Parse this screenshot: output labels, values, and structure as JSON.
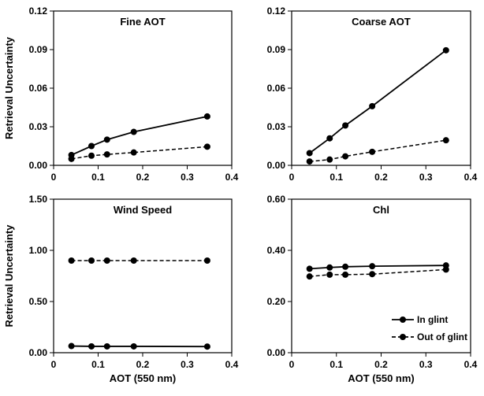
{
  "chart_data": [
    {
      "type": "line",
      "title": "Fine AOT",
      "xlabel": "",
      "ylabel": "Retrieval Uncertainty",
      "xlim": [
        0,
        0.4
      ],
      "ylim": [
        0,
        0.12
      ],
      "xticks": [
        "0",
        "0.1",
        "0.2",
        "0.3",
        "0.4"
      ],
      "yticks": [
        "0.00",
        "0.03",
        "0.06",
        "0.09",
        "0.12"
      ],
      "x": [
        0.04,
        0.085,
        0.12,
        0.18,
        0.345
      ],
      "series": [
        {
          "name": "In glint",
          "style": "solid",
          "values": [
            0.008,
            0.015,
            0.02,
            0.026,
            0.038
          ]
        },
        {
          "name": "Out of glint",
          "style": "dashed",
          "values": [
            0.005,
            0.0075,
            0.0085,
            0.01,
            0.0145
          ]
        }
      ]
    },
    {
      "type": "line",
      "title": "Coarse AOT",
      "xlabel": "",
      "ylabel": "",
      "xlim": [
        0,
        0.4
      ],
      "ylim": [
        0,
        0.12
      ],
      "xticks": [
        "0",
        "0.1",
        "0.2",
        "0.3",
        "0.4"
      ],
      "yticks": [
        "0.00",
        "0.03",
        "0.06",
        "0.09",
        "0.12"
      ],
      "x": [
        0.04,
        0.085,
        0.12,
        0.18,
        0.345
      ],
      "series": [
        {
          "name": "In glint",
          "style": "solid",
          "values": [
            0.0095,
            0.021,
            0.031,
            0.046,
            0.0895
          ]
        },
        {
          "name": "Out of glint",
          "style": "dashed",
          "values": [
            0.003,
            0.0045,
            0.007,
            0.0105,
            0.0195
          ]
        }
      ]
    },
    {
      "type": "line",
      "title": "Wind Speed",
      "xlabel": "AOT (550 nm)",
      "ylabel": "Retrieval Uncertainty",
      "xlim": [
        0,
        0.4
      ],
      "ylim": [
        0,
        1.5
      ],
      "xticks": [
        "0",
        "0.1",
        "0.2",
        "0.3",
        "0.4"
      ],
      "yticks": [
        "0.00",
        "0.50",
        "1.00",
        "1.50"
      ],
      "x": [
        0.04,
        0.085,
        0.12,
        0.18,
        0.345
      ],
      "series": [
        {
          "name": "In glint",
          "style": "solid",
          "values": [
            0.065,
            0.062,
            0.062,
            0.062,
            0.06
          ]
        },
        {
          "name": "Out of glint",
          "style": "dashed",
          "values": [
            0.9,
            0.9,
            0.9,
            0.9,
            0.9
          ]
        }
      ]
    },
    {
      "type": "line",
      "title": "Chl",
      "xlabel": "AOT (550 nm)",
      "ylabel": "",
      "xlim": [
        0,
        0.4
      ],
      "ylim": [
        0,
        0.6
      ],
      "xticks": [
        "0",
        "0.1",
        "0.2",
        "0.3",
        "0.4"
      ],
      "yticks": [
        "0.00",
        "0.20",
        "0.40",
        "0.60"
      ],
      "x": [
        0.04,
        0.085,
        0.12,
        0.18,
        0.345
      ],
      "series": [
        {
          "name": "In glint",
          "style": "solid",
          "values": [
            0.328,
            0.333,
            0.336,
            0.338,
            0.341
          ]
        },
        {
          "name": "Out of glint",
          "style": "dashed",
          "values": [
            0.298,
            0.305,
            0.305,
            0.307,
            0.325
          ]
        }
      ],
      "legend": {
        "position": "bottom-right",
        "entries": [
          {
            "label": "In glint",
            "style": "solid"
          },
          {
            "label": "Out of glint",
            "style": "dashed"
          }
        ]
      }
    }
  ]
}
